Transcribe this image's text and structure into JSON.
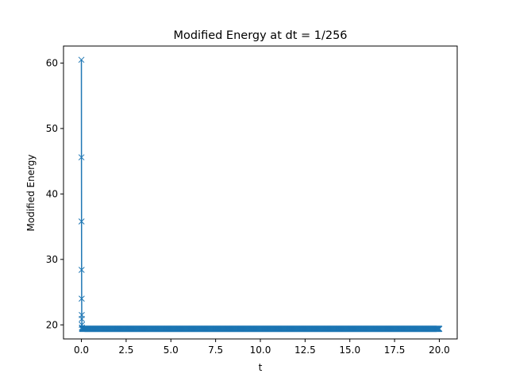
{
  "chart_data": {
    "type": "line",
    "title": "Modified Energy at dt = 1/256",
    "xlabel": "t",
    "ylabel": "Modified Energy",
    "xlim": [
      -1.0,
      21.0
    ],
    "ylim": [
      17.85,
      62.6
    ],
    "xticks": [
      0.0,
      2.5,
      5.0,
      7.5,
      10.0,
      12.5,
      15.0,
      17.5,
      20.0
    ],
    "xtick_labels": [
      "0.0",
      "2.5",
      "5.0",
      "7.5",
      "10.0",
      "12.5",
      "15.0",
      "17.5",
      "20.0"
    ],
    "yticks": [
      20,
      30,
      40,
      50,
      60
    ],
    "ytick_labels": [
      "20",
      "30",
      "40",
      "50",
      "60"
    ],
    "grid": false,
    "marker": "x",
    "series_color": "#1f77b4",
    "series": [
      {
        "initial_points": {
          "x": [
            0.0,
            0.00390625,
            0.0078125,
            0.01171875,
            0.015625,
            0.01953125,
            0.0234375,
            0.02734375,
            0.03125,
            0.03515625
          ],
          "y": [
            60.5,
            45.6,
            35.8,
            28.4,
            24.0,
            21.5,
            20.9,
            20.0,
            19.6,
            19.45
          ]
        },
        "steady_state": {
          "t_start": 0.0390625,
          "t_end": 20.0,
          "dt": 0.00390625,
          "value": 19.4
        }
      }
    ]
  }
}
